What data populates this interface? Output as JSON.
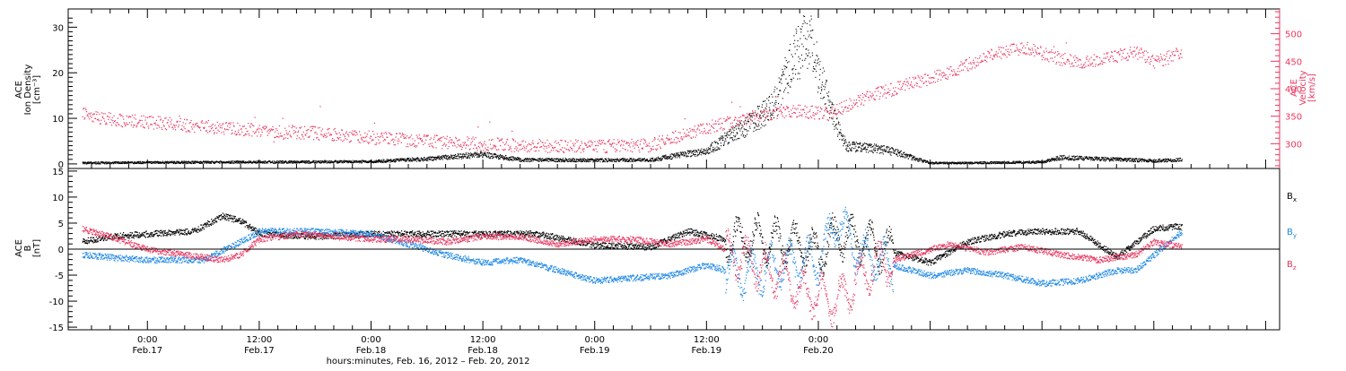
{
  "colors": {
    "black": "#000000",
    "red": "#e8365f",
    "blue": "#1e88e5"
  },
  "chart_data": [
    {
      "type": "scatter",
      "panel": "ion-density-velocity",
      "ylabel_lines": [
        "ACE",
        "Ion Density",
        "[cm⁻³]"
      ],
      "y2label_lines": [
        "ACE",
        "Velocity",
        "[km/s]"
      ],
      "ylim": [
        -1,
        34
      ],
      "y_ticks": [
        0,
        10,
        20,
        30
      ],
      "y2lim": [
        255,
        545
      ],
      "y2_ticks": [
        300,
        350,
        400,
        450,
        500
      ],
      "series": [
        {
          "axis": "left",
          "color": "#000000",
          "keypoints": [
            [
              -7,
              0.3
            ],
            [
              0,
              0.4
            ],
            [
              12,
              0.5
            ],
            [
              24,
              0.6
            ],
            [
              30,
              1.2
            ],
            [
              36,
              2.2
            ],
            [
              40,
              1.0
            ],
            [
              48,
              0.9
            ],
            [
              54,
              1.0
            ],
            [
              60,
              3.0
            ],
            [
              64,
              8.0
            ],
            [
              66,
              11.0
            ],
            [
              67.5,
              14.0
            ],
            [
              69,
              22.0
            ],
            [
              71,
              28.0
            ],
            [
              72,
              20.0
            ],
            [
              73,
              14.0
            ],
            [
              74,
              8.0
            ],
            [
              75,
              4.0
            ],
            [
              78,
              3.5
            ],
            [
              80,
              2.8
            ],
            [
              82,
              1.5
            ],
            [
              84,
              0.3
            ],
            [
              88,
              0.3
            ],
            [
              96,
              0.5
            ],
            [
              98,
              1.5
            ],
            [
              102,
              1.2
            ],
            [
              108,
              0.8
            ],
            [
              111,
              1.0
            ]
          ]
        },
        {
          "axis": "right",
          "color": "#e8365f",
          "keypoints": [
            [
              -7,
              355
            ],
            [
              -4,
              345
            ],
            [
              0,
              340
            ],
            [
              6,
              332
            ],
            [
              12,
              325
            ],
            [
              18,
              320
            ],
            [
              24,
              312
            ],
            [
              30,
              305
            ],
            [
              36,
              300
            ],
            [
              44,
              296
            ],
            [
              48,
              296
            ],
            [
              54,
              298
            ],
            [
              57,
              315
            ],
            [
              60,
              330
            ],
            [
              64,
              345
            ],
            [
              67,
              355
            ],
            [
              70,
              360
            ],
            [
              73,
              355
            ],
            [
              75,
              370
            ],
            [
              78,
              390
            ],
            [
              82,
              410
            ],
            [
              86,
              430
            ],
            [
              90,
              460
            ],
            [
              94,
              475
            ],
            [
              98,
              455
            ],
            [
              100,
              448
            ],
            [
              104,
              460
            ],
            [
              106,
              468
            ],
            [
              108,
              450
            ],
            [
              110,
              460
            ],
            [
              111,
              470
            ]
          ]
        }
      ]
    },
    {
      "type": "scatter",
      "panel": "magnetic-field",
      "ylabel_lines": [
        "ACE",
        "B",
        "[nT]"
      ],
      "ylim": [
        -15.5,
        15.5
      ],
      "y_ticks": [
        -15,
        -10,
        -5,
        0,
        5,
        10,
        15
      ],
      "legend": "right",
      "series": [
        {
          "name": "Bx",
          "color": "#000000",
          "keypoints": [
            [
              -7,
              1.5
            ],
            [
              -4,
              2.5
            ],
            [
              0,
              3.0
            ],
            [
              5,
              3.5
            ],
            [
              8,
              6.5
            ],
            [
              10,
              5.5
            ],
            [
              12,
              3.0
            ],
            [
              18,
              2.5
            ],
            [
              24,
              3.0
            ],
            [
              30,
              3.0
            ],
            [
              36,
              3.0
            ],
            [
              42,
              3.0
            ],
            [
              48,
              0.8
            ],
            [
              54,
              0.5
            ],
            [
              58,
              3.5
            ],
            [
              62,
              2.0
            ],
            [
              66,
              2.0
            ],
            [
              70,
              0.8
            ],
            [
              72,
              -1.0
            ],
            [
              74,
              3.0
            ],
            [
              76,
              2.0
            ],
            [
              80,
              -0.5
            ],
            [
              84,
              -2.5
            ],
            [
              88,
              1.5
            ],
            [
              92,
              3.0
            ],
            [
              96,
              3.5
            ],
            [
              100,
              3.5
            ],
            [
              104,
              -1.5
            ],
            [
              108,
              4.0
            ],
            [
              111,
              4.5
            ]
          ]
        },
        {
          "name": "By",
          "color": "#1e88e5",
          "keypoints": [
            [
              -7,
              -1.0
            ],
            [
              -4,
              -1.5
            ],
            [
              0,
              -2.0
            ],
            [
              6,
              -2.0
            ],
            [
              10,
              1.5
            ],
            [
              12,
              3.5
            ],
            [
              18,
              3.5
            ],
            [
              24,
              3.0
            ],
            [
              28,
              1.0
            ],
            [
              32,
              -1.0
            ],
            [
              36,
              -2.5
            ],
            [
              40,
              -2.0
            ],
            [
              44,
              -4.0
            ],
            [
              48,
              -6.0
            ],
            [
              52,
              -5.5
            ],
            [
              56,
              -5.0
            ],
            [
              60,
              -3.0
            ],
            [
              64,
              -5.0
            ],
            [
              68,
              -3.0
            ],
            [
              72,
              -2.0
            ],
            [
              74,
              6.0
            ],
            [
              76,
              0.0
            ],
            [
              80,
              -3.0
            ],
            [
              84,
              -5.0
            ],
            [
              88,
              -4.0
            ],
            [
              92,
              -5.0
            ],
            [
              96,
              -6.5
            ],
            [
              100,
              -6.0
            ],
            [
              104,
              -4.0
            ],
            [
              106,
              -4.0
            ],
            [
              108,
              -1.0
            ],
            [
              111,
              3.5
            ]
          ]
        },
        {
          "name": "Bz",
          "color": "#e8365f",
          "keypoints": [
            [
              -7,
              4.0
            ],
            [
              -4,
              2.5
            ],
            [
              0,
              0.0
            ],
            [
              4,
              -1.0
            ],
            [
              8,
              -2.0
            ],
            [
              10,
              -1.0
            ],
            [
              12,
              2.0
            ],
            [
              16,
              3.0
            ],
            [
              20,
              2.5
            ],
            [
              24,
              2.0
            ],
            [
              28,
              2.0
            ],
            [
              32,
              1.5
            ],
            [
              36,
              2.5
            ],
            [
              40,
              2.5
            ],
            [
              44,
              1.0
            ],
            [
              48,
              2.0
            ],
            [
              52,
              2.0
            ],
            [
              56,
              1.0
            ],
            [
              60,
              2.0
            ],
            [
              64,
              -2.0
            ],
            [
              68,
              -5.0
            ],
            [
              70,
              -8.0
            ],
            [
              72,
              -9.0
            ],
            [
              74,
              -10.0
            ],
            [
              76,
              -6.0
            ],
            [
              78,
              -3.0
            ],
            [
              82,
              -1.0
            ],
            [
              86,
              1.0
            ],
            [
              90,
              -0.5
            ],
            [
              94,
              0.5
            ],
            [
              98,
              -1.0
            ],
            [
              102,
              -2.0
            ],
            [
              106,
              -1.0
            ],
            [
              108,
              1.5
            ],
            [
              111,
              0.5
            ]
          ]
        }
      ],
      "legend_labels": [
        {
          "main": "B",
          "sub": "x",
          "color": "#000000"
        },
        {
          "main": "B",
          "sub": "y",
          "color": "#1e88e5"
        },
        {
          "main": "B",
          "sub": "z",
          "color": "#e8365f"
        }
      ]
    }
  ],
  "x_axis": {
    "range_hours": [
      -8.5,
      121.5
    ],
    "ticks": [
      {
        "hour": 0,
        "time": "0:00",
        "date": "Feb.17"
      },
      {
        "hour": 12,
        "time": "12:00",
        "date": "Feb.17"
      },
      {
        "hour": 24,
        "time": "0:00",
        "date": "Feb.18"
      },
      {
        "hour": 36,
        "time": "12:00",
        "date": "Feb.18"
      },
      {
        "hour": 48,
        "time": "0:00",
        "date": "Feb.19"
      },
      {
        "hour": 60,
        "time": "12:00",
        "date": "Feb.19"
      },
      {
        "hour": 72,
        "time": "0:00",
        "date": "Feb.20"
      }
    ],
    "title": "hours:minutes, Feb. 16, 2012 – Feb. 20, 2012"
  }
}
